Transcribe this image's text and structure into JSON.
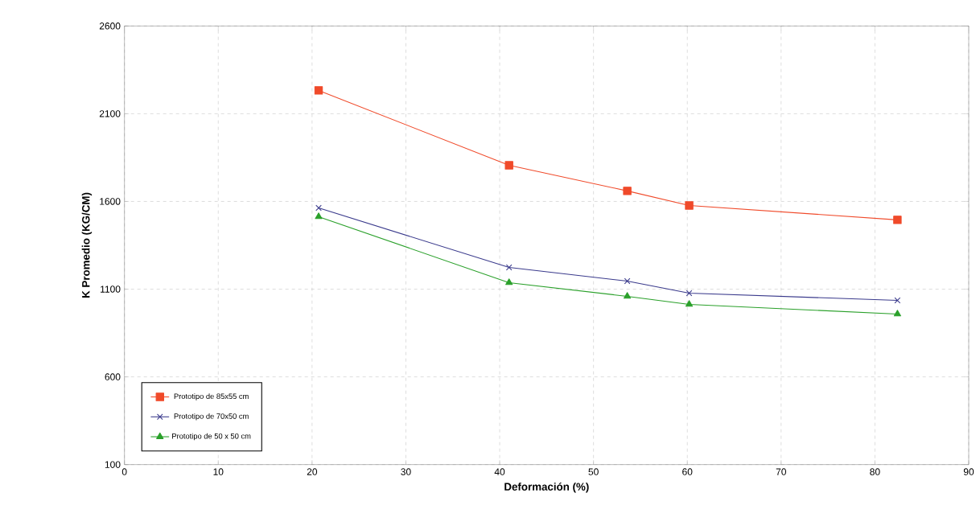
{
  "chart_data": {
    "type": "line",
    "xlabel": "Deformación (%)",
    "ylabel": "K Promedio (KG/CM)",
    "xlim": [
      0,
      90
    ],
    "xticks": [
      0,
      10,
      20,
      30,
      40,
      50,
      60,
      70,
      80,
      90
    ],
    "ylim": [
      100,
      2600
    ],
    "yticks": [
      100,
      600,
      1100,
      1600,
      2100,
      2600
    ],
    "grid": true,
    "legend": "bottom left",
    "series": [
      {
        "name": "Prototipo de 85x55 cm",
        "color": "#f04a2a",
        "marker": "square",
        "x": [
          20.7,
          41,
          53.6,
          60.2,
          82.4
        ],
        "values": [
          2233,
          1806,
          1660,
          1577,
          1495
        ]
      },
      {
        "name": "Prototipo de 70x50 cm",
        "color": "#3a3a8c",
        "marker": "cross",
        "x": [
          20.7,
          41,
          53.6,
          60.2,
          82.4
        ],
        "values": [
          1563,
          1224,
          1146,
          1077,
          1036
        ]
      },
      {
        "name": "Prototipo de 50 x 50 cm",
        "color": "#2aa02a",
        "marker": "triangle",
        "x": [
          20.7,
          41,
          53.6,
          60.2,
          82.4
        ],
        "values": [
          1513,
          1137,
          1059,
          1013,
          958
        ]
      }
    ]
  }
}
